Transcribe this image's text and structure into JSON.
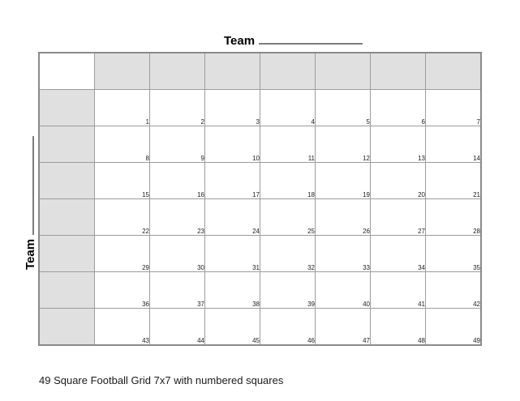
{
  "top_header": {
    "team_label": "Team"
  },
  "left_header": {
    "team_label": "Team"
  },
  "grid": {
    "rows": 7,
    "cols": 7,
    "cell_numbers": [
      1,
      2,
      3,
      4,
      5,
      6,
      7,
      8,
      9,
      10,
      11,
      12,
      13,
      14,
      15,
      16,
      17,
      18,
      19,
      20,
      21,
      22,
      23,
      24,
      25,
      26,
      27,
      28,
      29,
      30,
      31,
      32,
      33,
      34,
      35,
      36,
      37,
      38,
      39,
      40,
      41,
      42,
      43,
      44,
      45,
      46,
      47,
      48,
      49
    ],
    "colors": {
      "header_fill": "#e0e0e0",
      "grid_line": "#9c9c9c",
      "outer_border": "#8a8a8a",
      "blank_line": "#7d7d7d"
    }
  },
  "caption": {
    "text": "49 Square Football Grid 7x7 with numbered squares"
  }
}
